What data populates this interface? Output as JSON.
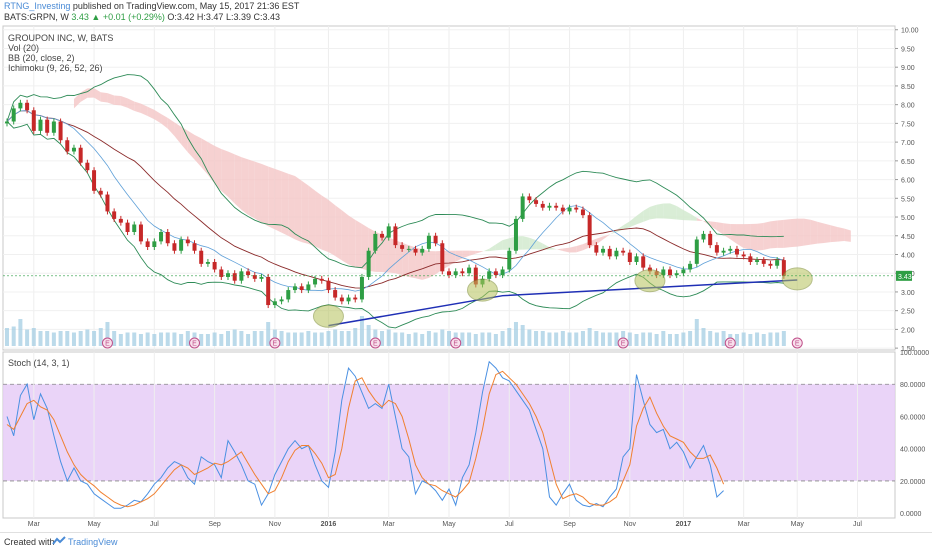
{
  "header": {
    "author": "RTNG_Investing",
    "published": "published on TradingView.com, May 15, 2017 21:36 EST",
    "symbol": "BATS:GRPN, W",
    "last": "3.43",
    "change": "+0.01 (+0.29%)",
    "ohlc": "O:3.42 H:3.47 L:3.39 C:3.43"
  },
  "legend": {
    "name": "GROUPON INC, W, BATS",
    "vol": "Vol (20)",
    "bb": "BB (20, close, 2)",
    "ichimoku": "Ichimoku (9, 26, 52, 26)",
    "stoch": "Stoch (14, 3, 1)"
  },
  "footer": {
    "created": "Created with",
    "brand": "TradingView"
  },
  "colors": {
    "up": "#2e9e44",
    "down": "#c62828",
    "bb": "#2e8b57",
    "kumo_red": "#f4c6c6",
    "kumo_green": "#cfe9cc",
    "trend": "#1f2fb5",
    "stoch_k": "#4a90e2",
    "stoch_d": "#f08030",
    "stoch_band": "#e6ccf7",
    "volume": "#9ecae1"
  },
  "chart_data": {
    "type": "candlestick",
    "price_axis": {
      "ticks": [
        "10.00",
        "9.50",
        "9.00",
        "8.50",
        "8.00",
        "7.50",
        "7.00",
        "6.50",
        "6.00",
        "5.50",
        "5.00",
        "4.50",
        "4.00",
        "3.50",
        "3.00",
        "2.50",
        "2.00",
        "1.50"
      ],
      "range": [
        1.45,
        10.1
      ],
      "last_label": "3.43"
    },
    "stoch_axis": {
      "ticks": [
        "100.0000",
        "80.0000",
        "60.0000",
        "40.0000",
        "20.0000",
        "0.0000"
      ],
      "range": [
        -3,
        100
      ],
      "bands": [
        80,
        20
      ]
    },
    "x_axis": {
      "labels": [
        "Mar",
        "May",
        "Jul",
        "Sep",
        "Nov",
        "2016",
        "Mar",
        "May",
        "Jul",
        "Sep",
        "Nov",
        "2017",
        "Mar",
        "May",
        "Jul"
      ],
      "week_index": [
        4,
        13,
        22,
        31,
        40,
        48,
        57,
        66,
        75,
        84,
        93,
        101,
        110,
        118,
        127
      ],
      "total_weeks": 132
    },
    "earnings_weeks": [
      15,
      28,
      40,
      55,
      67,
      92,
      108,
      118
    ],
    "series": [
      {
        "name": "close",
        "values": [
          7.55,
          7.9,
          8.05,
          7.85,
          7.3,
          7.6,
          7.25,
          7.55,
          7.05,
          6.75,
          6.85,
          6.45,
          6.25,
          5.7,
          5.6,
          5.15,
          4.95,
          4.85,
          4.6,
          4.8,
          4.35,
          4.2,
          4.35,
          4.6,
          4.3,
          4.1,
          4.4,
          4.3,
          4.1,
          3.75,
          3.8,
          3.6,
          3.4,
          3.5,
          3.3,
          3.55,
          3.45,
          3.35,
          3.4,
          2.65,
          2.75,
          2.8,
          3.05,
          3.15,
          3.05,
          3.2,
          3.35,
          3.3,
          3.05,
          2.85,
          2.75,
          2.85,
          2.8,
          3.4,
          4.1,
          4.55,
          4.45,
          4.75,
          4.25,
          4.15,
          4.15,
          4.05,
          4.15,
          4.5,
          4.3,
          3.55,
          3.45,
          3.55,
          3.5,
          3.65,
          3.2,
          3.35,
          3.55,
          3.45,
          3.6,
          4.1,
          4.95,
          5.55,
          5.45,
          5.35,
          5.25,
          5.3,
          5.25,
          5.15,
          5.25,
          5.2,
          5.05,
          4.25,
          4.05,
          4.15,
          3.95,
          4.1,
          4.05,
          3.8,
          3.95,
          3.65,
          3.55,
          3.45,
          3.6,
          3.45,
          3.5,
          3.6,
          3.75,
          4.4,
          4.55,
          4.25,
          4.05,
          4.1,
          4.15,
          4.0,
          3.95,
          3.8,
          3.85,
          3.75,
          3.7,
          3.85,
          3.43
        ]
      },
      {
        "name": "stoch_k",
        "values": [
          60,
          48,
          73,
          80,
          58,
          74,
          65,
          48,
          32,
          20,
          28,
          20,
          18,
          12,
          9,
          6,
          3,
          3,
          5,
          8,
          7,
          12,
          18,
          22,
          28,
          32,
          30,
          22,
          18,
          35,
          32,
          30,
          22,
          45,
          38,
          30,
          20,
          18,
          5,
          12,
          24,
          32,
          40,
          45,
          40,
          42,
          30,
          20,
          16,
          38,
          70,
          90,
          85,
          75,
          65,
          68,
          65,
          80,
          60,
          40,
          35,
          12,
          20,
          18,
          14,
          8,
          15,
          5,
          22,
          30,
          50,
          75,
          94,
          90,
          84,
          82,
          76,
          70,
          64,
          52,
          40,
          10,
          5,
          12,
          18,
          8,
          5,
          4,
          6,
          4,
          10,
          15,
          35,
          40,
          86,
          70,
          55,
          50,
          52,
          40,
          44,
          38,
          28,
          35,
          42,
          30,
          10,
          14
        ]
      },
      {
        "name": "stoch_d",
        "values": [
          55,
          52,
          60,
          68,
          70,
          66,
          64,
          58,
          48,
          38,
          30,
          24,
          20,
          17,
          13,
          10,
          7,
          5,
          4,
          5,
          7,
          9,
          12,
          17,
          22,
          27,
          30,
          28,
          24,
          26,
          28,
          31,
          30,
          32,
          35,
          38,
          31,
          24,
          18,
          12,
          14,
          22,
          32,
          39,
          42,
          42,
          37,
          31,
          22,
          24,
          40,
          65,
          82,
          84,
          76,
          70,
          66,
          70,
          68,
          60,
          46,
          30,
          22,
          18,
          17,
          14,
          12,
          10,
          14,
          19,
          34,
          52,
          74,
          86,
          88,
          84,
          80,
          74,
          68,
          60,
          50,
          34,
          18,
          9,
          11,
          12,
          10,
          6,
          5,
          5,
          7,
          10,
          20,
          30,
          54,
          65,
          72,
          62,
          54,
          48,
          46,
          44,
          38,
          34,
          34,
          36,
          28,
          18
        ]
      },
      {
        "name": "volume",
        "values": [
          0.6,
          0.65,
          0.9,
          0.55,
          0.6,
          0.5,
          0.5,
          0.45,
          0.5,
          0.5,
          0.45,
          0.5,
          0.55,
          0.5,
          0.6,
          0.8,
          0.5,
          0.4,
          0.45,
          0.45,
          0.4,
          0.45,
          0.4,
          0.45,
          0.45,
          0.45,
          0.4,
          0.5,
          0.45,
          0.4,
          0.4,
          0.45,
          0.4,
          0.5,
          0.55,
          0.5,
          0.4,
          0.5,
          0.5,
          0.8,
          0.55,
          0.5,
          0.45,
          0.45,
          0.45,
          0.5,
          0.45,
          0.45,
          0.5,
          0.55,
          0.5,
          0.5,
          0.6,
          1.0,
          0.7,
          0.55,
          0.5,
          0.55,
          0.45,
          0.45,
          0.4,
          0.45,
          0.4,
          0.5,
          0.45,
          0.55,
          0.5,
          0.45,
          0.45,
          0.45,
          0.4,
          0.45,
          0.45,
          0.4,
          0.5,
          0.6,
          0.8,
          0.7,
          0.55,
          0.5,
          0.5,
          0.45,
          0.45,
          0.5,
          0.45,
          0.45,
          0.5,
          0.6,
          0.5,
          0.45,
          0.45,
          0.45,
          0.5,
          0.45,
          0.4,
          0.45,
          0.45,
          0.4,
          0.5,
          0.4,
          0.4,
          0.45,
          0.5,
          0.9,
          0.6,
          0.5,
          0.45,
          0.5,
          0.4,
          0.4,
          0.45,
          0.4,
          0.45,
          0.4,
          0.45,
          0.45,
          0.5
        ]
      }
    ],
    "trendline": [
      [
        48,
        2.1
      ],
      [
        74,
        2.9
      ],
      [
        118,
        3.32
      ]
    ],
    "highlight_weeks": [
      [
        48,
        2.35
      ],
      [
        71,
        3.05
      ],
      [
        96,
        3.3
      ],
      [
        118,
        3.35
      ]
    ]
  }
}
